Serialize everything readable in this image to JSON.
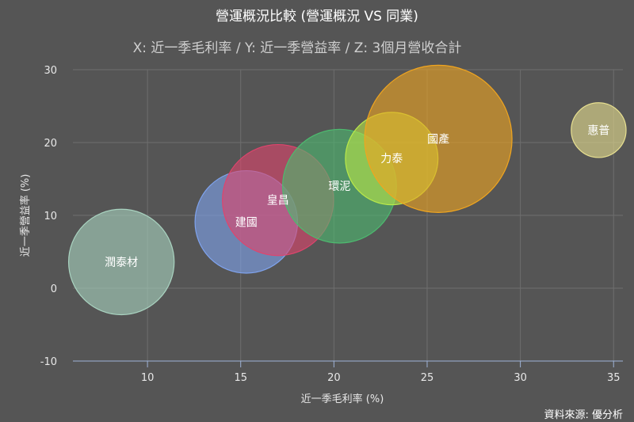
{
  "chart_data": {
    "type": "bubble",
    "title": "營運概況比較 (營運概況 VS 同業)",
    "subtitle": "X: 近一季毛利率 / Y: 近一季營益率 / Z: 3個月營收合計",
    "xlabel": "近一季毛利率 (%)",
    "ylabel": "近一季營益率 (%)",
    "xlim": [
      6,
      35.5
    ],
    "ylim": [
      -10,
      30
    ],
    "xticks": [
      "10",
      "15",
      "20",
      "25",
      "30",
      "35"
    ],
    "yticks": [
      "30",
      "20",
      "10",
      "0",
      "-10"
    ],
    "grid": true,
    "points": [
      {
        "name": "潤泰材",
        "x": 8.6,
        "y": 3.6,
        "z": 2.2
      },
      {
        "name": "建國",
        "x": 15.3,
        "y": 9.1,
        "z": 2.0
      },
      {
        "name": "皇昌",
        "x": 17.0,
        "y": 12.1,
        "z": 2.6
      },
      {
        "name": "環泥",
        "x": 20.3,
        "y": 14.0,
        "z": 2.8
      },
      {
        "name": "力泰",
        "x": 23.1,
        "y": 17.8,
        "z": 1.4
      },
      {
        "name": "國產",
        "x": 25.6,
        "y": 20.5,
        "z": 6.0
      },
      {
        "name": "惠普",
        "x": 34.2,
        "y": 21.7,
        "z": 0.1
      }
    ],
    "colors": {
      "潤泰材": "#a9d3c0",
      "建國": "#7fa3ee",
      "皇昌": "#e0446d",
      "環泥": "#4dba6f",
      "力泰": "#b9e84a",
      "國產": "#f0a51f",
      "惠普": "#e8e090"
    },
    "credits": "資料來源: 優分析"
  }
}
